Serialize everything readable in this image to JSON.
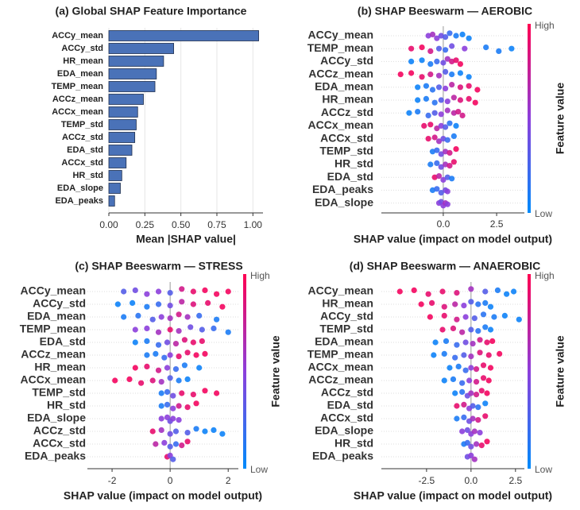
{
  "chart_data": [
    {
      "type": "bar",
      "orientation": "horizontal",
      "title": "(a) Global SHAP Feature Importance",
      "xlabel": "Mean |SHAP value|",
      "categories": [
        "ACCy_mean",
        "ACCy_std",
        "HR_mean",
        "EDA_mean",
        "TEMP_mean",
        "ACCz_mean",
        "ACCx_mean",
        "TEMP_std",
        "ACCz_std",
        "EDA_std",
        "ACCx_std",
        "HR_std",
        "EDA_slope",
        "EDA_peaks"
      ],
      "values": [
        1.04,
        0.45,
        0.38,
        0.33,
        0.32,
        0.24,
        0.2,
        0.19,
        0.18,
        0.16,
        0.12,
        0.09,
        0.08,
        0.04
      ],
      "color": "#4a72b8",
      "grid": true,
      "xlim": [
        0,
        1.07
      ],
      "xticks": [
        {
          "value": 0,
          "label": "0.00"
        },
        {
          "value": 0.25,
          "label": "0.25"
        },
        {
          "value": 0.5,
          "label": "0.50"
        },
        {
          "value": 0.75,
          "label": "0.75"
        },
        {
          "value": 1,
          "label": "1.00"
        }
      ]
    },
    {
      "type": "beeswarm",
      "title": "(b) SHAP Beeswarm — AEROBIC",
      "xlabel": "SHAP value (impact on model output)",
      "colorbar_label": "Feature value",
      "colorbar_high": "High",
      "colorbar_low": "Low",
      "xlim": [
        -2.9,
        3.8
      ],
      "xticks": [
        {
          "value": 0,
          "label": "0.0"
        },
        2.5
      ],
      "series": [
        {
          "name": "ACCy_mean",
          "values": [
            -0.7,
            -0.5,
            -0.3,
            -0.1,
            0.1,
            0.3,
            0.6,
            0.9,
            1.2
          ],
          "feature_values": [
            0.5,
            0.6,
            0.5,
            0.4,
            0.3,
            0.2,
            0.1,
            0.05,
            0.05
          ]
        },
        {
          "name": "TEMP_mean",
          "values": [
            -1.5,
            -1.0,
            -0.6,
            -0.2,
            0.1,
            0.4,
            1.0,
            2.0,
            2.6,
            3.2
          ],
          "feature_values": [
            0.9,
            0.95,
            0.8,
            0.3,
            0.2,
            0.4,
            0.5,
            0.1,
            0.1,
            0.05
          ]
        },
        {
          "name": "ACCy_std",
          "values": [
            -1.5,
            -1.0,
            -0.6,
            -0.3,
            0,
            0.2,
            0.4,
            0.6,
            0.8
          ],
          "feature_values": [
            0.05,
            0.05,
            0.1,
            0.2,
            0.4,
            0.6,
            0.8,
            0.9,
            0.95
          ]
        },
        {
          "name": "ACCz_mean",
          "values": [
            -2,
            -1.5,
            -1,
            -0.6,
            -0.2,
            0.1,
            0.4,
            0.8,
            1.2
          ],
          "feature_values": [
            0.95,
            0.95,
            0.9,
            0.8,
            0.6,
            0.3,
            0.1,
            0.05,
            0.05
          ]
        },
        {
          "name": "EDA_mean",
          "values": [
            -1.2,
            -0.8,
            -0.5,
            -0.2,
            0.1,
            0.4,
            0.8,
            1.2,
            1.6
          ],
          "feature_values": [
            0.05,
            0.1,
            0.15,
            0.3,
            0.5,
            0.7,
            0.85,
            0.9,
            0.95
          ]
        },
        {
          "name": "HR_mean",
          "values": [
            -1.2,
            -0.8,
            -0.4,
            -0.1,
            0.2,
            0.5,
            0.8,
            1.2,
            1.5
          ],
          "feature_values": [
            0.05,
            0.1,
            0.15,
            0.3,
            0.5,
            0.7,
            0.85,
            0.9,
            0.95
          ]
        },
        {
          "name": "ACCz_std",
          "values": [
            -1.6,
            -1.2,
            -0.7,
            -0.4,
            -0.1,
            0.2,
            0.5,
            0.7,
            0.9
          ],
          "feature_values": [
            0.05,
            0.1,
            0.2,
            0.3,
            0.5,
            0.6,
            0.7,
            0.8,
            0.8
          ]
        },
        {
          "name": "ACCx_mean",
          "values": [
            -0.9,
            -0.6,
            -0.3,
            -0.1,
            0.1,
            0.3,
            0.6
          ],
          "feature_values": [
            0.9,
            0.9,
            0.7,
            0.5,
            0.3,
            0.15,
            0.05
          ]
        },
        {
          "name": "ACCx_std",
          "values": [
            -0.7,
            -0.4,
            -0.2,
            0,
            0.2,
            0.5
          ],
          "feature_values": [
            0.9,
            0.8,
            0.6,
            0.4,
            0.2,
            0.1
          ]
        },
        {
          "name": "TEMP_std",
          "values": [
            -0.5,
            -0.3,
            -0.1,
            0.1,
            0.3,
            0.6
          ],
          "feature_values": [
            0.1,
            0.2,
            0.4,
            0.6,
            0.8,
            0.95
          ]
        },
        {
          "name": "HR_std",
          "values": [
            -0.6,
            -0.3,
            -0.1,
            0.1,
            0.3,
            0.5
          ],
          "feature_values": [
            0.1,
            0.2,
            0.4,
            0.6,
            0.8,
            0.9
          ]
        },
        {
          "name": "EDA_std",
          "values": [
            -0.4,
            -0.2,
            0,
            0.2,
            0.4
          ],
          "feature_values": [
            0.9,
            0.7,
            0.5,
            0.3,
            0.1
          ]
        },
        {
          "name": "EDA_peaks",
          "values": [
            -0.5,
            -0.3,
            -0.1,
            0.1,
            0.2
          ],
          "feature_values": [
            0.1,
            0.2,
            0.3,
            0.4,
            0.5
          ]
        },
        {
          "name": "EDA_slope",
          "values": [
            -0.2,
            -0.1,
            0,
            0.1,
            0.2
          ],
          "feature_values": [
            0.5,
            0.4,
            0.5,
            0.6,
            0.5
          ]
        }
      ]
    },
    {
      "type": "beeswarm",
      "title": "(c) SHAP Beeswarm — STRESS",
      "xlabel": "SHAP value (impact on model output)",
      "colorbar_label": "Feature value",
      "colorbar_high": "High",
      "colorbar_low": "Low",
      "xlim": [
        -2.85,
        2.35
      ],
      "xticks": [
        -2,
        0,
        2
      ],
      "series": [
        {
          "name": "ACCy_mean",
          "values": [
            -1.6,
            -1.2,
            -0.8,
            -0.4,
            0,
            0.4,
            0.8,
            1.2,
            1.6,
            2.0
          ],
          "feature_values": [
            0.3,
            0.4,
            0.5,
            0.5,
            0.3,
            0.8,
            0.9,
            0.95,
            0.95,
            0.95
          ]
        },
        {
          "name": "ACCy_std",
          "values": [
            -1.8,
            -1.3,
            -0.8,
            -0.4,
            0,
            0.4,
            0.8,
            1.3,
            1.8
          ],
          "feature_values": [
            0.05,
            0.05,
            0.1,
            0.2,
            0.4,
            0.7,
            0.85,
            0.9,
            0.95
          ]
        },
        {
          "name": "EDA_mean",
          "values": [
            -1.6,
            -1.1,
            -0.6,
            -0.3,
            0,
            0.3,
            0.6,
            1.0,
            1.6
          ],
          "feature_values": [
            0.1,
            0.15,
            0.3,
            0.5,
            0.6,
            0.8,
            0.6,
            0.2,
            0.1
          ]
        },
        {
          "name": "TEMP_mean",
          "values": [
            -1.2,
            -0.8,
            -0.4,
            0,
            0.3,
            0.7,
            1.1,
            1.5,
            2.0
          ],
          "feature_values": [
            0.5,
            0.5,
            0.6,
            0.9,
            0.6,
            0.4,
            0.3,
            0.2,
            0.1
          ]
        },
        {
          "name": "EDA_std",
          "values": [
            -1.2,
            -0.8,
            -0.4,
            -0.1,
            0.2,
            0.5,
            0.8,
            1.1
          ],
          "feature_values": [
            0.05,
            0.1,
            0.2,
            0.4,
            0.7,
            0.85,
            0.9,
            0.9
          ]
        },
        {
          "name": "ACCz_mean",
          "values": [
            -0.8,
            -0.5,
            -0.2,
            0,
            0.3,
            0.6,
            0.9,
            1.2
          ],
          "feature_values": [
            0.1,
            0.1,
            0.2,
            0.5,
            0.9,
            0.9,
            0.95,
            0.95
          ]
        },
        {
          "name": "HR_mean",
          "values": [
            -1.2,
            -0.8,
            -0.4,
            -0.1,
            0.2,
            0.5,
            1.0
          ],
          "feature_values": [
            0.95,
            0.9,
            0.8,
            0.5,
            0.2,
            0.1,
            0.05
          ]
        },
        {
          "name": "ACCx_mean",
          "values": [
            -1.9,
            -1.4,
            -1.0,
            -0.6,
            -0.3,
            0,
            0.3,
            0.6
          ],
          "feature_values": [
            0.95,
            0.95,
            0.9,
            0.85,
            0.6,
            0.3,
            0.1,
            0.05
          ]
        },
        {
          "name": "TEMP_std",
          "values": [
            -0.3,
            -0.1,
            0.1,
            0.4,
            0.8,
            1.2,
            1.6
          ],
          "feature_values": [
            0.1,
            0.2,
            0.4,
            0.9,
            0.9,
            0.95,
            0.95
          ]
        },
        {
          "name": "HR_std",
          "values": [
            -0.3,
            -0.1,
            0.1,
            0.3,
            0.6,
            0.9
          ],
          "feature_values": [
            0.1,
            0.2,
            0.5,
            0.8,
            0.9,
            0.95
          ]
        },
        {
          "name": "EDA_slope",
          "values": [
            -0.3,
            -0.1,
            0,
            0.1,
            0.3
          ],
          "feature_values": [
            0.5,
            0.5,
            0.4,
            0.5,
            0.5
          ]
        },
        {
          "name": "ACCz_std",
          "values": [
            -0.6,
            -0.3,
            0,
            0.2,
            0.6,
            0.9,
            1.2,
            1.5,
            1.8
          ],
          "feature_values": [
            0.9,
            0.6,
            0.4,
            0.3,
            0.3,
            0.1,
            0.05,
            0.05,
            0.05
          ]
        },
        {
          "name": "ACCx_std",
          "values": [
            -0.5,
            -0.2,
            0,
            0.2,
            0.4,
            0.6
          ],
          "feature_values": [
            0.7,
            0.5,
            0.3,
            0.2,
            0.8,
            0.9
          ]
        },
        {
          "name": "EDA_peaks",
          "values": [
            -0.1,
            0,
            0.1
          ],
          "feature_values": [
            0.9,
            0.5,
            0.3
          ]
        }
      ]
    },
    {
      "type": "beeswarm",
      "title": "(d) SHAP Beeswarm — ANAEROBIC",
      "xlabel": "SHAP value (impact on model output)",
      "colorbar_label": "Feature value",
      "colorbar_high": "High",
      "colorbar_low": "Low",
      "xlim": [
        -5.04,
        3.0
      ],
      "xticks": [
        -2.5,
        {
          "value": 0,
          "label": "0.0"
        },
        2.5
      ],
      "series": [
        {
          "name": "ACCy_mean",
          "values": [
            -4,
            -3.2,
            -2.4,
            -1.6,
            -0.8,
            0,
            0.8,
            1.5,
            2.0,
            2.4
          ],
          "feature_values": [
            0.95,
            0.95,
            0.9,
            0.9,
            0.85,
            0.6,
            0.3,
            0.1,
            0.05,
            0.05
          ]
        },
        {
          "name": "HR_mean",
          "values": [
            -2.8,
            -2.2,
            -1.5,
            -0.9,
            -0.4,
            0,
            0.4,
            0.8,
            1.1
          ],
          "feature_values": [
            0.95,
            0.9,
            0.85,
            0.7,
            0.5,
            0.3,
            0.15,
            0.1,
            0.05
          ]
        },
        {
          "name": "ACCy_std",
          "values": [
            -2.3,
            -1.5,
            -0.8,
            -0.3,
            0.2,
            0.7,
            1.3,
            1.9,
            2.7
          ],
          "feature_values": [
            0.95,
            0.9,
            0.8,
            0.5,
            0.3,
            0.15,
            0.1,
            0.05,
            0.05
          ]
        },
        {
          "name": "TEMP_std",
          "values": [
            -1.6,
            -1.0,
            -0.5,
            0,
            0.4,
            0.8,
            1.1
          ],
          "feature_values": [
            0.9,
            0.85,
            0.7,
            0.3,
            0.15,
            0.1,
            0.05
          ]
        },
        {
          "name": "EDA_mean",
          "values": [
            -2.0,
            -1.4,
            -0.8,
            -0.3,
            0.1,
            0.5,
            0.9,
            1.2
          ],
          "feature_values": [
            0.05,
            0.1,
            0.2,
            0.4,
            0.6,
            0.8,
            0.9,
            0.95
          ]
        },
        {
          "name": "TEMP_mean",
          "values": [
            -2.1,
            -1.5,
            -0.9,
            -0.4,
            0,
            0.5,
            1.0,
            1.6
          ],
          "feature_values": [
            0.05,
            0.1,
            0.2,
            0.3,
            0.6,
            0.85,
            0.9,
            0.95
          ]
        },
        {
          "name": "ACCx_mean",
          "values": [
            -1.2,
            -0.7,
            -0.3,
            0,
            0.3,
            0.7,
            1.1
          ],
          "feature_values": [
            0.05,
            0.1,
            0.2,
            0.5,
            0.8,
            0.9,
            0.95
          ]
        },
        {
          "name": "ACCz_mean",
          "values": [
            -1.5,
            -1.0,
            -0.5,
            -0.1,
            0.3,
            0.7,
            1.0
          ],
          "feature_values": [
            0.05,
            0.1,
            0.2,
            0.5,
            0.8,
            0.9,
            0.95
          ]
        },
        {
          "name": "ACCz_std",
          "values": [
            -0.9,
            -0.5,
            -0.2,
            0,
            0.3,
            0.6,
            0.9
          ],
          "feature_values": [
            0.05,
            0.15,
            0.4,
            0.6,
            0.8,
            0.9,
            0.95
          ]
        },
        {
          "name": "EDA_std",
          "values": [
            -0.8,
            -0.4,
            -0.1,
            0.1,
            0.4,
            0.8
          ],
          "feature_values": [
            0.9,
            0.8,
            0.5,
            0.3,
            0.15,
            0.05
          ]
        },
        {
          "name": "ACCx_std",
          "values": [
            -0.8,
            -0.4,
            -0.1,
            0.1,
            0.4,
            0.8
          ],
          "feature_values": [
            0.1,
            0.2,
            0.4,
            0.6,
            0.8,
            0.9
          ]
        },
        {
          "name": "EDA_slope",
          "values": [
            -0.5,
            -0.2,
            0,
            0.2,
            0.5
          ],
          "feature_values": [
            0.5,
            0.4,
            0.5,
            0.6,
            0.5
          ]
        },
        {
          "name": "HR_std",
          "values": [
            -0.4,
            -0.2,
            0,
            0.3,
            0.6,
            0.9
          ],
          "feature_values": [
            0.1,
            0.2,
            0.4,
            0.6,
            0.9,
            0.95
          ]
        },
        {
          "name": "EDA_peaks",
          "values": [
            -0.2,
            0,
            0.2
          ],
          "feature_values": [
            0.4,
            0.5,
            0.6
          ]
        }
      ]
    }
  ]
}
